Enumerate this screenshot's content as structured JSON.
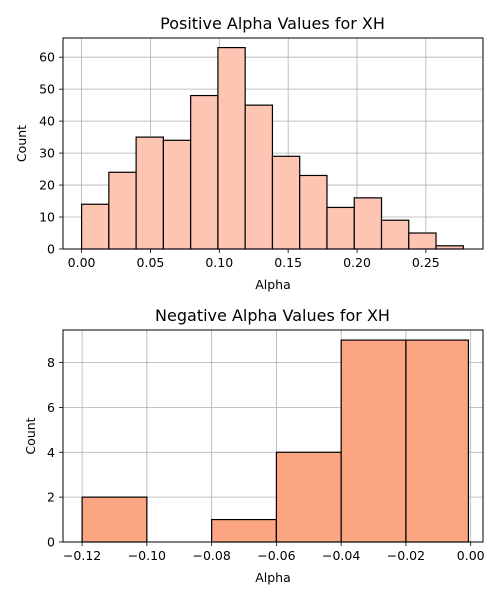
{
  "chart_data": [
    {
      "type": "bar",
      "title": "Positive Alpha Values for XH",
      "xlabel": "Alpha",
      "ylabel": "Count",
      "xlim": [
        -0.0135,
        0.2915
      ],
      "ylim": [
        0,
        66
      ],
      "xticks": [
        0.0,
        0.05,
        0.1,
        0.15,
        0.2,
        0.25
      ],
      "xtick_labels": [
        "0.00",
        "0.05",
        "0.10",
        "0.15",
        "0.20",
        "0.25"
      ],
      "yticks": [
        0,
        10,
        20,
        30,
        40,
        50,
        60
      ],
      "ytick_labels": [
        "0",
        "10",
        "20",
        "30",
        "40",
        "50",
        "60"
      ],
      "bin_edges": [
        0.0,
        0.0198,
        0.0396,
        0.0594,
        0.0792,
        0.099,
        0.1188,
        0.1386,
        0.1584,
        0.1782,
        0.198,
        0.2178,
        0.2376,
        0.2574,
        0.2772
      ],
      "values": [
        14,
        24,
        35,
        34,
        48,
        63,
        45,
        29,
        23,
        13,
        16,
        9,
        5,
        1
      ],
      "bar_color": "#fdc5b2",
      "edge_color": "#000000",
      "grid": true
    },
    {
      "type": "bar",
      "title": "Negative Alpha Values for XH",
      "xlabel": "Alpha",
      "ylabel": "Count",
      "xlim": [
        -0.1259,
        0.0038
      ],
      "ylim": [
        0,
        9.45
      ],
      "xticks": [
        -0.12,
        -0.1,
        -0.08,
        -0.06,
        -0.04,
        -0.02,
        0.0
      ],
      "xtick_labels": [
        "−0.12",
        "−0.10",
        "−0.08",
        "−0.06",
        "−0.04",
        "−0.02",
        "0.00"
      ],
      "yticks": [
        0,
        2,
        4,
        6,
        8
      ],
      "ytick_labels": [
        "0",
        "2",
        "4",
        "6",
        "8"
      ],
      "bin_edges": [
        -0.12,
        -0.1,
        -0.08,
        -0.06,
        -0.04,
        -0.02,
        -0.0007
      ],
      "values": [
        2,
        0,
        1,
        4,
        9,
        9
      ],
      "bar_color": "#fca582",
      "edge_color": "#000000",
      "grid": true
    }
  ]
}
